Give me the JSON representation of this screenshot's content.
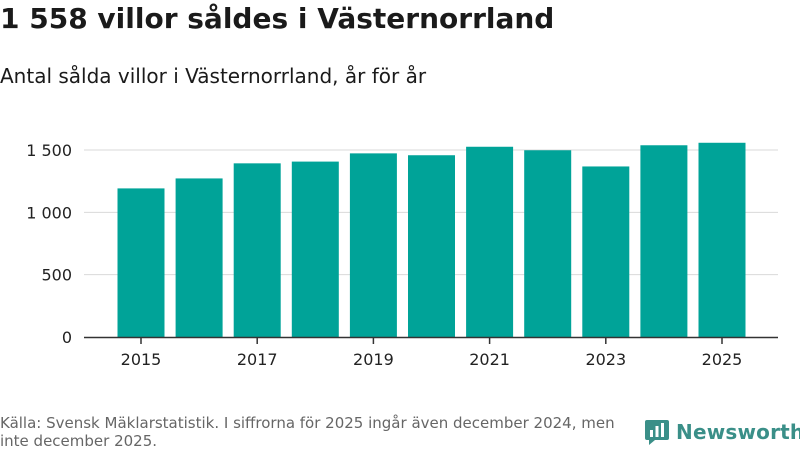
{
  "header": {
    "title": "1 558 villor såldes i Västernorrland",
    "subtitle": "Antal sålda villor i Västernorrland, år för år"
  },
  "chart_data": {
    "type": "bar",
    "categories": [
      "2015",
      "2016",
      "2017",
      "2018",
      "2019",
      "2020",
      "2021",
      "2022",
      "2023",
      "2024",
      "2025"
    ],
    "values": [
      1192,
      1272,
      1393,
      1407,
      1473,
      1458,
      1526,
      1498,
      1368,
      1538,
      1558
    ],
    "x_tick_labels": [
      "2015",
      "2017",
      "2019",
      "2021",
      "2023",
      "2025"
    ],
    "y_tick_labels": [
      "0",
      "500",
      "1 000",
      "1 500"
    ],
    "y_ticks": [
      0,
      500,
      1000,
      1500
    ],
    "ylim": [
      0,
      1650
    ],
    "bar_color": "#00a398",
    "grid": true
  },
  "footer": {
    "source": "Källa: Svensk Mäklarstatistik. I siffrorna för 2025 ingår även december 2024, men inte december 2025."
  },
  "brand": {
    "name": "Newsworthy",
    "icon": "newsworthy-logo-icon",
    "color": "#3a8f88"
  }
}
